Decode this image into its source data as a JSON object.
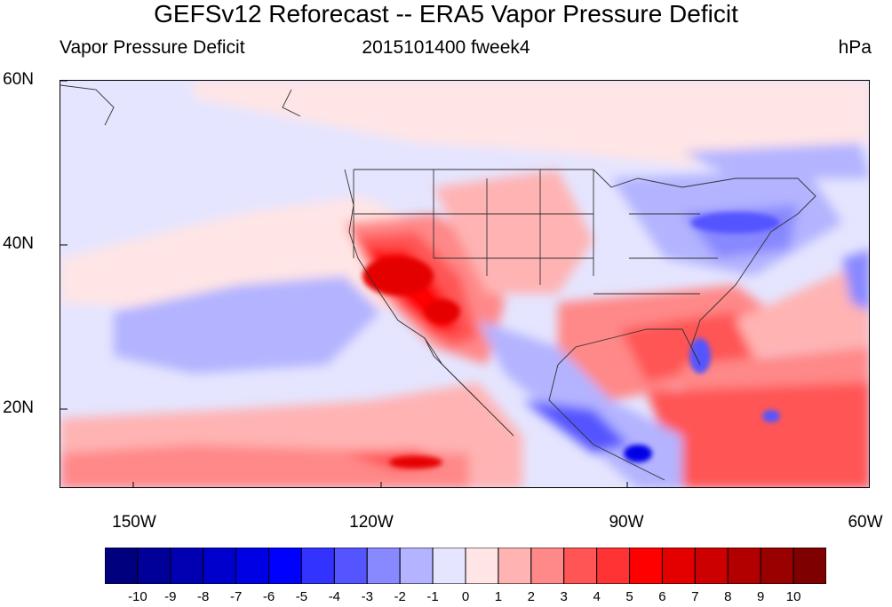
{
  "title": "GEFSv12 Reforecast -- ERA5 Vapor Pressure Deficit",
  "subtitle_left": "Vapor Pressure Deficit",
  "subtitle_center": "2015101400 fweek4",
  "subtitle_right": "hPa",
  "lat_labels": [
    "60N",
    "40N",
    "20N"
  ],
  "lon_labels": [
    "150W",
    "120W",
    "90W",
    "60W"
  ],
  "colorbar": {
    "labels": [
      "-10",
      "-9",
      "-8",
      "-7",
      "-6",
      "-5",
      "-4",
      "-3",
      "-2",
      "-1",
      "0",
      "1",
      "2",
      "3",
      "4",
      "5",
      "6",
      "7",
      "8",
      "9",
      "10"
    ],
    "colors": [
      "#00007f",
      "#000099",
      "#0000b2",
      "#0000cc",
      "#0000e5",
      "#0000ff",
      "#3333ff",
      "#5555ff",
      "#8888ff",
      "#b3b3ff",
      "#e5e5ff",
      "#ffe5e5",
      "#ffb3b3",
      "#ff8888",
      "#ff5555",
      "#ff3333",
      "#ff0000",
      "#e50000",
      "#cc0000",
      "#b20000",
      "#990000",
      "#7f0000"
    ]
  },
  "map": {
    "extent": {
      "lon_min": -159,
      "lon_max": -60,
      "lat_min": 10,
      "lat_max": 60
    }
  }
}
